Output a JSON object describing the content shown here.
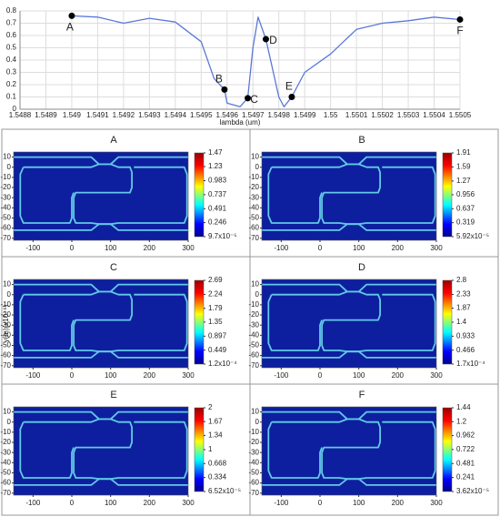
{
  "chart_data": [
    {
      "type": "line",
      "x_label": "lambda (um)",
      "color": "#5a78d8",
      "grid": true,
      "x": [
        1.549,
        1.5491,
        1.5492,
        1.5493,
        1.5494,
        1.5495,
        1.54955,
        1.54959,
        1.5496,
        1.54965,
        1.54968,
        1.5497,
        1.54972,
        1.54975,
        1.5498,
        1.54982,
        1.54985,
        1.5499,
        1.55,
        1.5501,
        1.5502,
        1.5503,
        1.5504,
        1.5505
      ],
      "values": [
        0.76,
        0.75,
        0.7,
        0.74,
        0.71,
        0.55,
        0.25,
        0.16,
        0.05,
        0.02,
        0.09,
        0.5,
        0.75,
        0.57,
        0.1,
        0.02,
        0.1,
        0.3,
        0.45,
        0.65,
        0.7,
        0.72,
        0.75,
        0.73
      ],
      "xlim": [
        1.5488,
        1.5505
      ],
      "xticks": [
        1.5488,
        1.5489,
        1.549,
        1.5491,
        1.5492,
        1.5493,
        1.5494,
        1.5495,
        1.5496,
        1.5497,
        1.5498,
        1.5499,
        1.55,
        1.5501,
        1.5502,
        1.5503,
        1.5504,
        1.5505
      ],
      "ylim": [
        0,
        0.8
      ],
      "yticks": [
        0,
        0.1,
        0.2,
        0.3,
        0.4,
        0.5,
        0.6,
        0.7,
        0.8
      ],
      "annotations": [
        {
          "text": "A",
          "x": 1.549,
          "y": 0.76
        },
        {
          "text": "B",
          "x": 1.54959,
          "y": 0.16
        },
        {
          "text": "C",
          "x": 1.54968,
          "y": 0.09
        },
        {
          "text": "D",
          "x": 1.54975,
          "y": 0.57
        },
        {
          "text": "E",
          "x": 1.54985,
          "y": 0.1
        },
        {
          "text": "F",
          "x": 1.5505,
          "y": 0.73
        }
      ]
    },
    {
      "type": "heatmap",
      "title": "A",
      "xlim": [
        -150,
        300
      ],
      "xticks": [
        -100,
        0,
        100,
        200,
        300
      ],
      "ylim": [
        -72,
        15
      ],
      "yticks": [
        10,
        0,
        -10,
        -20,
        -30,
        -40,
        -50,
        -60,
        -70
      ],
      "clim": [
        9.7e-05,
        1.47
      ],
      "cticks": [
        1.47,
        1.23,
        0.983,
        0.737,
        0.491,
        0.246,
        {
          "value": 9.7e-05,
          "label": "9.7x10⁻⁵"
        }
      ]
    },
    {
      "type": "heatmap",
      "title": "B",
      "xlim": [
        -150,
        300
      ],
      "xticks": [
        -100,
        0,
        100,
        200,
        300
      ],
      "ylim": [
        -72,
        15
      ],
      "yticks": [
        10,
        0,
        -10,
        -20,
        -30,
        -40,
        -50,
        -60,
        -70
      ],
      "clim": [
        5.92e-05,
        1.91
      ],
      "cticks": [
        1.91,
        1.59,
        1.27,
        0.956,
        0.637,
        0.319,
        {
          "value": 5.92e-05,
          "label": "5.92x10⁻⁵"
        }
      ]
    },
    {
      "type": "heatmap",
      "title": "C",
      "y_label": "y(m)(x10⁻⁶)",
      "xlim": [
        -150,
        300
      ],
      "xticks": [
        -100,
        0,
        100,
        200,
        300
      ],
      "ylim": [
        -72,
        15
      ],
      "yticks": [
        10,
        0,
        -10,
        -20,
        -30,
        -40,
        -50,
        -60,
        -70
      ],
      "clim": [
        0.00012,
        2.69
      ],
      "cticks": [
        2.69,
        2.24,
        1.79,
        1.35,
        0.897,
        0.449,
        {
          "value": 0.00012,
          "label": "1.2x10⁻⁴"
        }
      ]
    },
    {
      "type": "heatmap",
      "title": "D",
      "xlim": [
        -150,
        300
      ],
      "xticks": [
        -100,
        0,
        100,
        200,
        300
      ],
      "ylim": [
        -72,
        15
      ],
      "yticks": [
        10,
        0,
        -10,
        -20,
        -30,
        -40,
        -50,
        -60,
        -70
      ],
      "clim": [
        0.00017,
        2.8
      ],
      "cticks": [
        2.8,
        2.33,
        1.87,
        1.4,
        0.933,
        0.466,
        {
          "value": 0.00017,
          "label": "1.7x10⁻⁴"
        }
      ]
    },
    {
      "type": "heatmap",
      "title": "E",
      "xlim": [
        -150,
        300
      ],
      "xticks": [
        -100,
        0,
        100,
        200,
        300
      ],
      "ylim": [
        -72,
        15
      ],
      "yticks": [
        10,
        0,
        -10,
        -20,
        -30,
        -40,
        -50,
        -60,
        -70
      ],
      "clim": [
        6.52e-05,
        2
      ],
      "cticks": [
        2,
        1.67,
        1.34,
        1,
        0.668,
        0.334,
        {
          "value": 6.52e-05,
          "label": "6.52x10⁻⁵"
        }
      ]
    },
    {
      "type": "heatmap",
      "title": "F",
      "xlim": [
        -150,
        300
      ],
      "xticks": [
        -100,
        0,
        100,
        200,
        300
      ],
      "ylim": [
        -72,
        15
      ],
      "yticks": [
        10,
        0,
        -10,
        -20,
        -30,
        -40,
        -50,
        -60,
        -70
      ],
      "clim": [
        3.62e-05,
        1.44
      ],
      "cticks": [
        1.44,
        1.2,
        0.962,
        0.722,
        0.481,
        0.241,
        {
          "value": 3.62e-05,
          "label": "3.62x10⁻⁵"
        }
      ]
    }
  ]
}
